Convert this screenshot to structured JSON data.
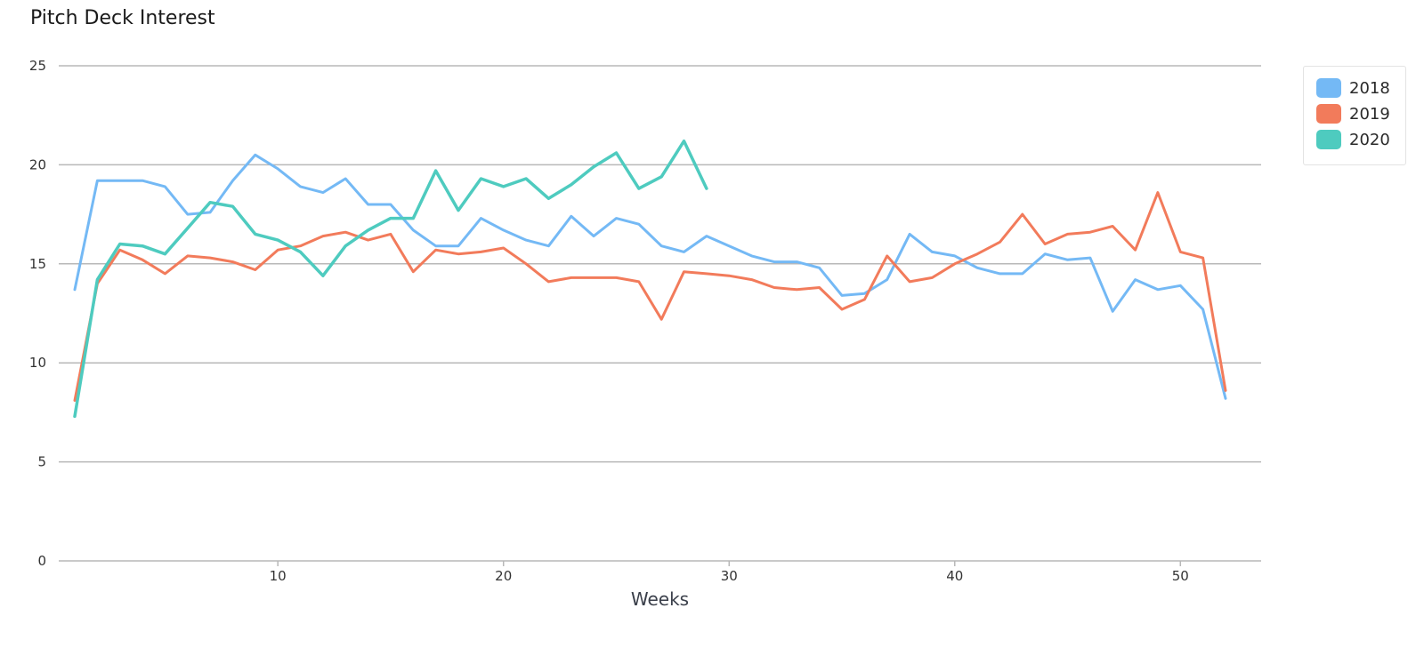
{
  "chart_data": {
    "type": "line",
    "title": "Pitch Deck Interest",
    "xlabel": "Weeks",
    "ylabel": "",
    "xlim": [
      1,
      52
    ],
    "ylim": [
      0,
      25
    ],
    "x_ticks": [
      10,
      20,
      30,
      40,
      50
    ],
    "y_ticks": [
      0,
      5,
      10,
      15,
      20,
      25
    ],
    "grid": "horizontal",
    "legend_position": "top-right",
    "series": [
      {
        "name": "2018",
        "color": "#74b9f5",
        "x": [
          1,
          2,
          3,
          4,
          5,
          6,
          7,
          8,
          9,
          10,
          11,
          12,
          13,
          14,
          15,
          16,
          17,
          18,
          19,
          20,
          21,
          22,
          23,
          24,
          25,
          26,
          27,
          28,
          29,
          30,
          31,
          32,
          33,
          34,
          35,
          36,
          37,
          38,
          39,
          40,
          41,
          42,
          43,
          44,
          45,
          46,
          47,
          48,
          49,
          50,
          51,
          52
        ],
        "values": [
          13.7,
          19.2,
          19.2,
          19.2,
          18.9,
          17.5,
          17.6,
          19.2,
          20.5,
          19.8,
          18.9,
          18.6,
          19.3,
          18,
          18,
          16.7,
          15.9,
          15.9,
          17.3,
          16.7,
          16.2,
          15.9,
          17.4,
          16.4,
          17.3,
          17,
          15.9,
          15.6,
          16.4,
          15.9,
          15.4,
          15.1,
          15.1,
          14.8,
          13.4,
          13.5,
          14.2,
          16.5,
          15.6,
          15.4,
          14.8,
          14.5,
          14.5,
          15.5,
          15.2,
          15.3,
          12.6,
          14.2,
          13.7,
          13.9,
          12.7,
          8.2
        ]
      },
      {
        "name": "2019",
        "color": "#f27b5b",
        "x": [
          1,
          2,
          3,
          4,
          5,
          6,
          7,
          8,
          9,
          10,
          11,
          12,
          13,
          14,
          15,
          16,
          17,
          18,
          19,
          20,
          21,
          22,
          23,
          24,
          25,
          26,
          27,
          28,
          29,
          30,
          31,
          32,
          33,
          34,
          35,
          36,
          37,
          38,
          39,
          40,
          41,
          42,
          43,
          44,
          45,
          46,
          47,
          48,
          49,
          50,
          51,
          52
        ],
        "values": [
          8.1,
          14,
          15.7,
          15.2,
          14.5,
          15.4,
          15.3,
          15.1,
          14.7,
          15.7,
          15.9,
          16.4,
          16.6,
          16.2,
          16.5,
          14.6,
          15.7,
          15.5,
          15.6,
          15.8,
          15,
          14.1,
          14.3,
          14.3,
          14.3,
          14.1,
          12.2,
          14.6,
          14.5,
          14.4,
          14.2,
          13.8,
          13.7,
          13.8,
          12.7,
          13.2,
          15.4,
          14.1,
          14.3,
          15,
          15.5,
          16.1,
          17.5,
          16,
          16.5,
          16.6,
          16.9,
          15.7,
          18.6,
          15.6,
          15.3,
          8.6
        ]
      },
      {
        "name": "2020",
        "color": "#4ecbbf",
        "x": [
          1,
          2,
          3,
          4,
          5,
          6,
          7,
          8,
          9,
          10,
          11,
          12,
          13,
          14,
          15,
          16,
          17,
          18,
          19,
          20,
          21,
          22,
          23,
          24,
          25,
          26,
          27,
          28,
          29
        ],
        "values": [
          7.3,
          14.2,
          16,
          15.9,
          15.5,
          16.8,
          18.1,
          17.9,
          16.5,
          16.2,
          15.6,
          14.4,
          15.9,
          16.7,
          17.3,
          17.3,
          19.7,
          17.7,
          19.3,
          18.9,
          19.3,
          18.3,
          19,
          19.9,
          20.6,
          18.8,
          19.4,
          21.2,
          18.8
        ]
      }
    ]
  }
}
